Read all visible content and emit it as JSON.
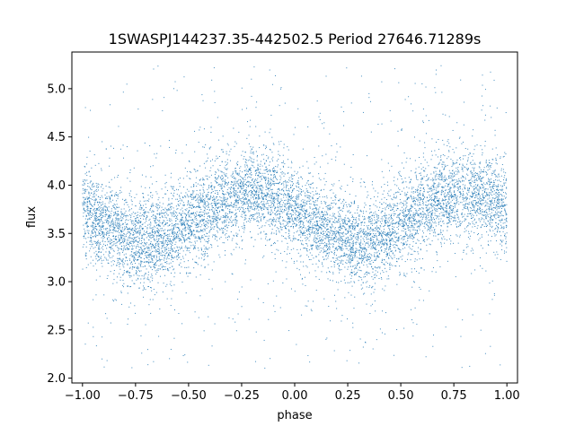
{
  "chart_data": {
    "type": "scatter",
    "title": "1SWASPJ144237.35-442502.5 Period 27646.71289s",
    "xlabel": "phase",
    "ylabel": "flux",
    "xlim": [
      -1.05,
      1.05
    ],
    "ylim": [
      1.95,
      5.38
    ],
    "x_ticks": [
      -1.0,
      -0.75,
      -0.5,
      -0.25,
      0.0,
      0.25,
      0.5,
      0.75,
      1.0
    ],
    "x_tick_labels": [
      "−1.00",
      "−0.75",
      "−0.50",
      "−0.25",
      "0.00",
      "0.25",
      "0.50",
      "0.75",
      "1.00"
    ],
    "y_ticks": [
      2.0,
      2.5,
      3.0,
      3.5,
      4.0,
      4.5,
      5.0
    ],
    "y_tick_labels": [
      "2.0",
      "2.5",
      "3.0",
      "3.5",
      "4.0",
      "4.5",
      "5.0"
    ],
    "grid": false,
    "legend": "none",
    "marker_color": "#1f77b4",
    "series": [
      {
        "x_range": [
          -1.0,
          1.0
        ],
        "model": "sinusoid",
        "period_in_phase": 1.0,
        "mean_flux": 3.67,
        "amplitude": 0.25,
        "maximum_at_phase": -0.2,
        "minimum_at_phase": 0.3,
        "core_scatter_sigma": 0.22,
        "outlier_flux_range": [
          2.1,
          5.25
        ]
      }
    ]
  }
}
